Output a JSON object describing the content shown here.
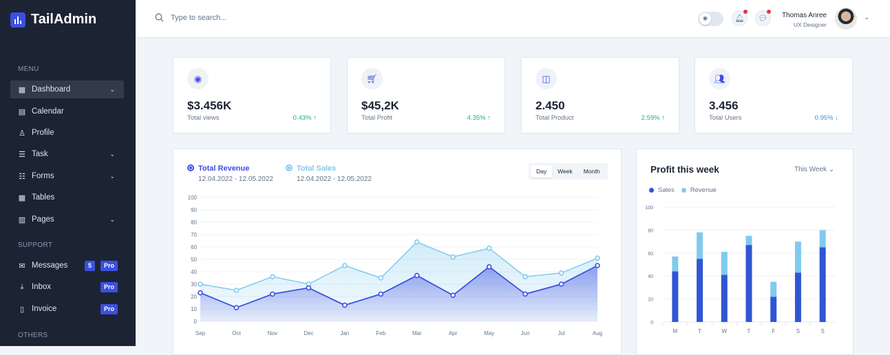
{
  "brand": "TailAdmin",
  "sidebar": {
    "menu_title": "MENU",
    "support_title": "SUPPORT",
    "others_title": "OTHERS",
    "items": [
      {
        "label": "Dashboard",
        "icon": "grid-icon",
        "expandable": true,
        "active": true
      },
      {
        "label": "Calendar",
        "icon": "calendar-icon"
      },
      {
        "label": "Profile",
        "icon": "user-icon"
      },
      {
        "label": "Task",
        "icon": "task-list-icon",
        "expandable": true
      },
      {
        "label": "Forms",
        "icon": "forms-icon",
        "expandable": true
      },
      {
        "label": "Tables",
        "icon": "table-icon"
      },
      {
        "label": "Pages",
        "icon": "pages-icon",
        "expandable": true
      }
    ],
    "support": [
      {
        "label": "Messages",
        "icon": "mail-icon",
        "count": "5",
        "badge": "Pro"
      },
      {
        "label": "Inbox",
        "icon": "inbox-icon",
        "badge": "Pro"
      },
      {
        "label": "Invoice",
        "icon": "invoice-icon",
        "badge": "Pro"
      }
    ]
  },
  "header": {
    "search_placeholder": "Type to search...",
    "user_name": "Thomas Anree",
    "user_role": "UX Designer"
  },
  "stats": [
    {
      "value": "$3.456K",
      "label": "Total views",
      "change": "0.43% ↑",
      "icon": "eye-icon",
      "color": "#10b981"
    },
    {
      "value": "$45,2K",
      "label": "Total Profit",
      "change": "4.35% ↑",
      "icon": "cart-icon",
      "color": "#10b981"
    },
    {
      "value": "2.450",
      "label": "Total Product",
      "change": "2.59% ↑",
      "icon": "bag-icon",
      "color": "#10b981"
    },
    {
      "value": "3.456",
      "label": "Total Users",
      "change": "0.95% ↓",
      "icon": "users-icon",
      "color": "#259ae6"
    }
  ],
  "chart_data": [
    {
      "type": "area",
      "x": [
        "Sep",
        "Oct",
        "Nov",
        "Dec",
        "Jan",
        "Feb",
        "Mar",
        "Apr",
        "May",
        "Jun",
        "Jul",
        "Aug"
      ],
      "ylim": [
        0,
        100
      ],
      "yticks": [
        0,
        10,
        20,
        30,
        40,
        50,
        60,
        70,
        80,
        90,
        100
      ],
      "grid": true,
      "series": [
        {
          "name": "Total Revenue",
          "range": "12.04.2022 - 12.05.2022",
          "color": "#3c50e0",
          "values": [
            23,
            11,
            22,
            27,
            13,
            22,
            37,
            21,
            44,
            22,
            30,
            45
          ]
        },
        {
          "name": "Total Sales",
          "range": "12.04.2022 - 12.05.2022",
          "color": "#80caee",
          "values": [
            30,
            25,
            36,
            30,
            45,
            35,
            64,
            52,
            59,
            36,
            39,
            51
          ]
        }
      ],
      "periods": [
        "Day",
        "Week",
        "Month"
      ],
      "selected_period": "Day"
    },
    {
      "type": "bar",
      "stacked": true,
      "title": "Profit this week",
      "filter": "This Week",
      "categories": [
        "M",
        "T",
        "W",
        "T",
        "F",
        "S",
        "S"
      ],
      "ylim": [
        0,
        100
      ],
      "yticks": [
        0,
        20,
        40,
        60,
        80,
        100
      ],
      "grid": true,
      "legend": "top-left",
      "series": [
        {
          "name": "Sales",
          "color": "#3056d3",
          "values": [
            44,
            55,
            41,
            67,
            22,
            43,
            65
          ]
        },
        {
          "name": "Revenue",
          "color": "#80caee",
          "values": [
            13,
            23,
            20,
            8,
            13,
            27,
            15
          ]
        }
      ]
    }
  ]
}
